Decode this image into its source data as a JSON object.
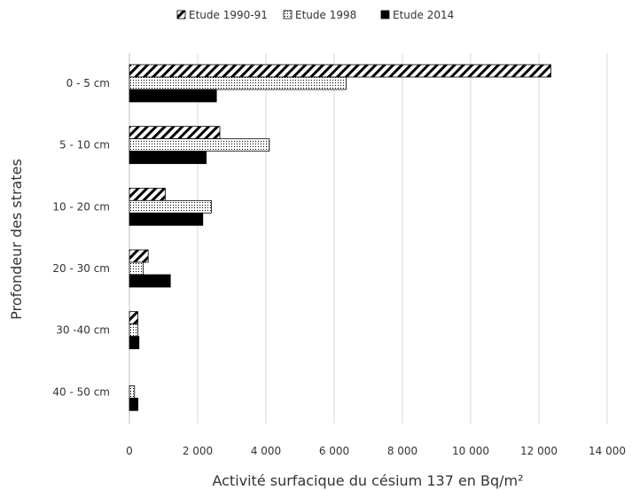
{
  "chart_data": {
    "type": "bar",
    "orientation": "horizontal",
    "xlabel": "Activité surfacique du césium 137 en Bq/m²",
    "ylabel": "Profondeur des strates",
    "xlim": [
      0,
      14000
    ],
    "x_ticks": [
      {
        "value": 0,
        "label": "0"
      },
      {
        "value": 2000,
        "label": "2 000"
      },
      {
        "value": 4000,
        "label": "4 000"
      },
      {
        "value": 6000,
        "label": "6 000"
      },
      {
        "value": 8000,
        "label": "8 000"
      },
      {
        "value": 10000,
        "label": "10 000"
      },
      {
        "value": 12000,
        "label": "12 000"
      },
      {
        "value": 14000,
        "label": "14 000"
      }
    ],
    "grid": true,
    "legend_position": "top",
    "categories": [
      "0 - 5 cm",
      "5 - 10 cm",
      "10 - 20 cm",
      "20 - 30 cm",
      "30 -40 cm",
      "40 - 50 cm"
    ],
    "series": [
      {
        "name": "Etude 1990-91",
        "pattern": "diagonal-hatch",
        "values": [
          12350,
          2650,
          1050,
          550,
          250,
          0
        ]
      },
      {
        "name": "Etude 1998",
        "pattern": "dots",
        "values": [
          6350,
          4100,
          2400,
          400,
          250,
          150
        ]
      },
      {
        "name": "Etude 2014",
        "pattern": "solid",
        "values": [
          2550,
          2250,
          2150,
          1200,
          280,
          250
        ]
      }
    ]
  }
}
